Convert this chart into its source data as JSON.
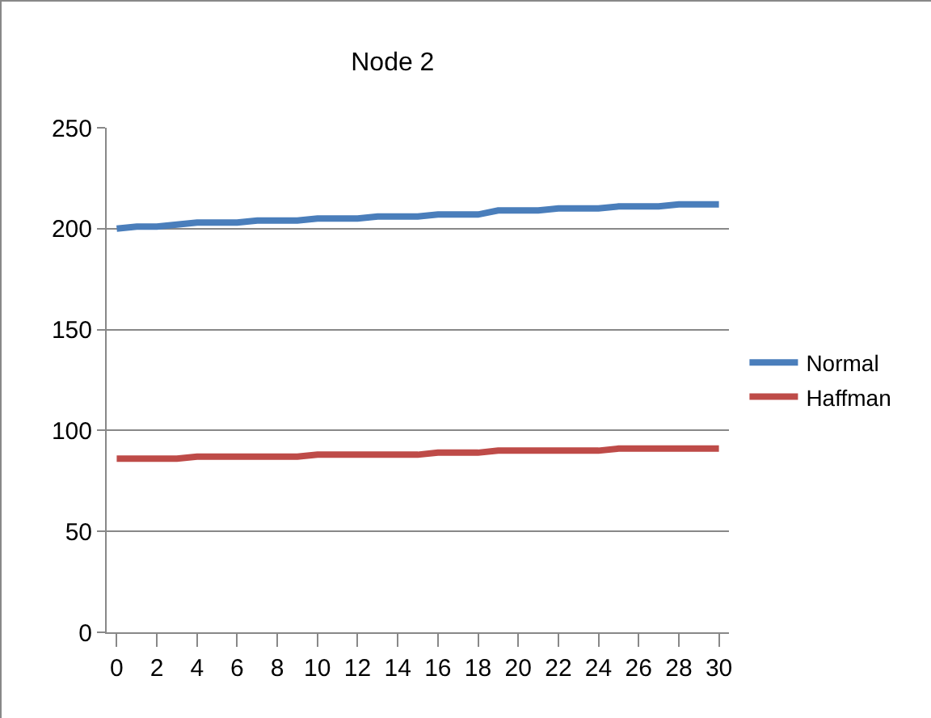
{
  "chart_data": {
    "type": "line",
    "title": "Node 2",
    "x": [
      0,
      1,
      2,
      3,
      4,
      5,
      6,
      7,
      8,
      9,
      10,
      11,
      12,
      13,
      14,
      15,
      16,
      17,
      18,
      19,
      20,
      21,
      22,
      23,
      24,
      25,
      26,
      27,
      28,
      29,
      30
    ],
    "series": [
      {
        "name": "Normal",
        "color": "#4a7ebb",
        "values": [
          200,
          201,
          201,
          202,
          203,
          203,
          203,
          204,
          204,
          204,
          205,
          205,
          205,
          206,
          206,
          206,
          207,
          207,
          207,
          209,
          209,
          209,
          210,
          210,
          210,
          211,
          211,
          211,
          212,
          212,
          212
        ]
      },
      {
        "name": "Haffman",
        "color": "#be4b48",
        "values": [
          86,
          86,
          86,
          86,
          87,
          87,
          87,
          87,
          87,
          87,
          88,
          88,
          88,
          88,
          88,
          88,
          89,
          89,
          89,
          90,
          90,
          90,
          90,
          90,
          90,
          91,
          91,
          91,
          91,
          91,
          91
        ]
      }
    ],
    "xlim": [
      -0.5,
      30.5
    ],
    "xticks": [
      0,
      2,
      4,
      6,
      8,
      10,
      12,
      14,
      16,
      18,
      20,
      22,
      24,
      26,
      28,
      30
    ],
    "ylim": [
      0,
      250
    ],
    "yticks": [
      0,
      50,
      100,
      150,
      200,
      250
    ],
    "grid": "y",
    "legend": "right",
    "marker": "none",
    "line_style": "solid"
  }
}
